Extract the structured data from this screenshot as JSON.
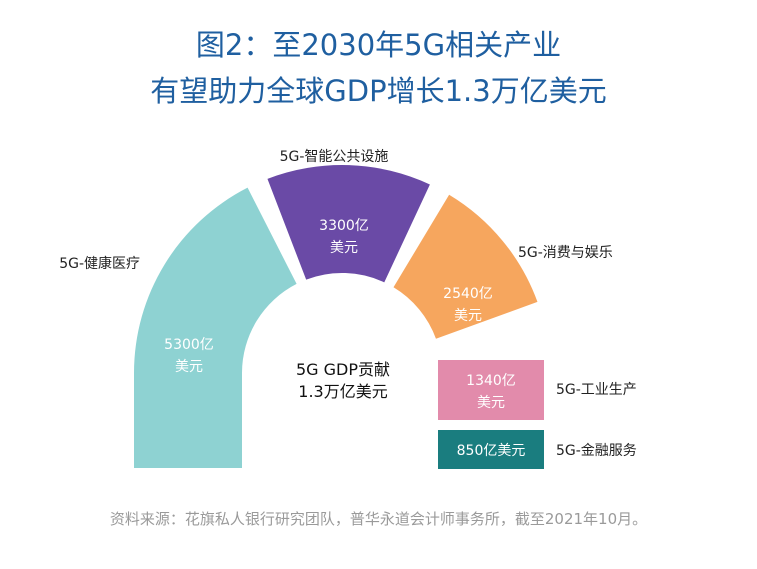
{
  "title_line1": "图2：至2030年5G相关产业",
  "title_line2": "有望助力全球GDP增长1.3万亿美元",
  "source": "资料来源：花旗私人银行研究团队，普华永道会计师事务所，截至2021年10月。",
  "chart_data": {
    "type": "semi-donut",
    "center_label_line1": "5G GDP贡献",
    "center_label_line2": "1.3万亿美元",
    "segments": [
      {
        "name": "5G-健康医疗",
        "value_text_1": "5300亿",
        "value_text_2": "美元",
        "value": 5300,
        "color": "#8ed2d2"
      },
      {
        "name": "5G-智能公共设施",
        "value_text_1": "3300亿",
        "value_text_2": "美元",
        "value": 3300,
        "color": "#6a4aa6"
      },
      {
        "name": "5G-消费与娱乐",
        "value_text_1": "2540亿",
        "value_text_2": "美元",
        "value": 2540,
        "color": "#f6a65e"
      },
      {
        "name": "5G-工业生产",
        "value_text_1": "1340亿",
        "value_text_2": "美元",
        "value": 1340,
        "color": "#e28bab"
      },
      {
        "name": "5G-金融服务",
        "value_text_1": "850亿美元",
        "value_text_2": "",
        "value": 850,
        "color": "#1a7d7f"
      }
    ]
  }
}
